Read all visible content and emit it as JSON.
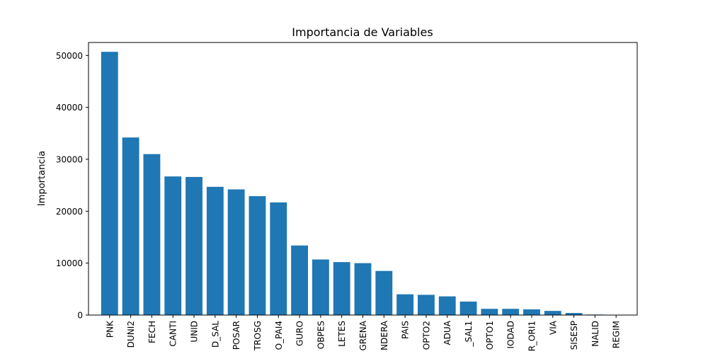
{
  "chart_data": {
    "type": "bar",
    "title": "Importancia de Variables",
    "xlabel": "",
    "ylabel": "Importancia",
    "ylim": [
      0,
      52500
    ],
    "yticks": [
      0,
      10000,
      20000,
      30000,
      40000,
      50000
    ],
    "grid": false,
    "bar_color": "#1f77b4",
    "categories": [
      "PNK",
      "DUNI2",
      "FECH",
      "CANTI",
      "UNID",
      "D_SAL",
      "POSAR",
      "TROSG",
      "O_PAI4",
      "GURO",
      "OBPES",
      "LETES",
      "GRENA",
      "NDERA",
      "PAIS",
      "OPTO2",
      "ADUA",
      "_SAL1",
      "OPTO1",
      "IODAD",
      "R_ORI1",
      "VIA",
      "SISESP",
      "NALID",
      "REGIM"
    ],
    "values": [
      50700,
      34200,
      31000,
      26700,
      26600,
      24700,
      24200,
      22900,
      21700,
      13400,
      10700,
      10200,
      10000,
      8500,
      4000,
      3900,
      3600,
      2600,
      1200,
      1200,
      1100,
      800,
      400,
      100,
      50
    ]
  }
}
